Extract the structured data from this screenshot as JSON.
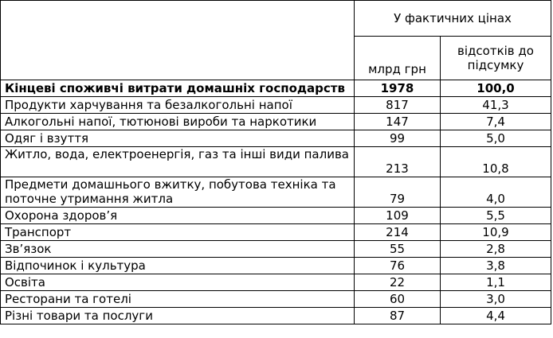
{
  "header": {
    "group_label": "У фактичних цінах",
    "col_unit": "млрд грн",
    "col_percent": "відсотків до підсумку"
  },
  "total": {
    "label": "Кінцеві споживчі витрати домашніх господарств",
    "value": "1978",
    "percent": "100,0"
  },
  "rows": [
    {
      "label": "Продукти харчування та безалкогольні напої",
      "value": "817",
      "percent": "41,3"
    },
    {
      "label": "Алкогольні напої, тютюнові вироби та наркотики",
      "value": "147",
      "percent": "7,4"
    },
    {
      "label": "Одяг і взуття",
      "value": "99",
      "percent": "5,0"
    },
    {
      "label": "Житло, вода, електроенергія, газ та інші види палива",
      "value": "213",
      "percent": "10,8"
    },
    {
      "label": "Предмети домашнього вжитку, побутова техніка та поточне утримання житла",
      "value": "79",
      "percent": "4,0"
    },
    {
      "label": "Охорона здоров’я",
      "value": "109",
      "percent": "5,5"
    },
    {
      "label": "Транспорт",
      "value": "214",
      "percent": "10,9"
    },
    {
      "label": "Зв’язок",
      "value": "55",
      "percent": "2,8"
    },
    {
      "label": "Відпочинок і культура",
      "value": "76",
      "percent": "3,8"
    },
    {
      "label": "Освіта",
      "value": "22",
      "percent": "1,1"
    },
    {
      "label": "Ресторани та готелі",
      "value": "60",
      "percent": "3,0"
    },
    {
      "label": "Різні товари та послуги",
      "value": "87",
      "percent": "4,4"
    }
  ]
}
